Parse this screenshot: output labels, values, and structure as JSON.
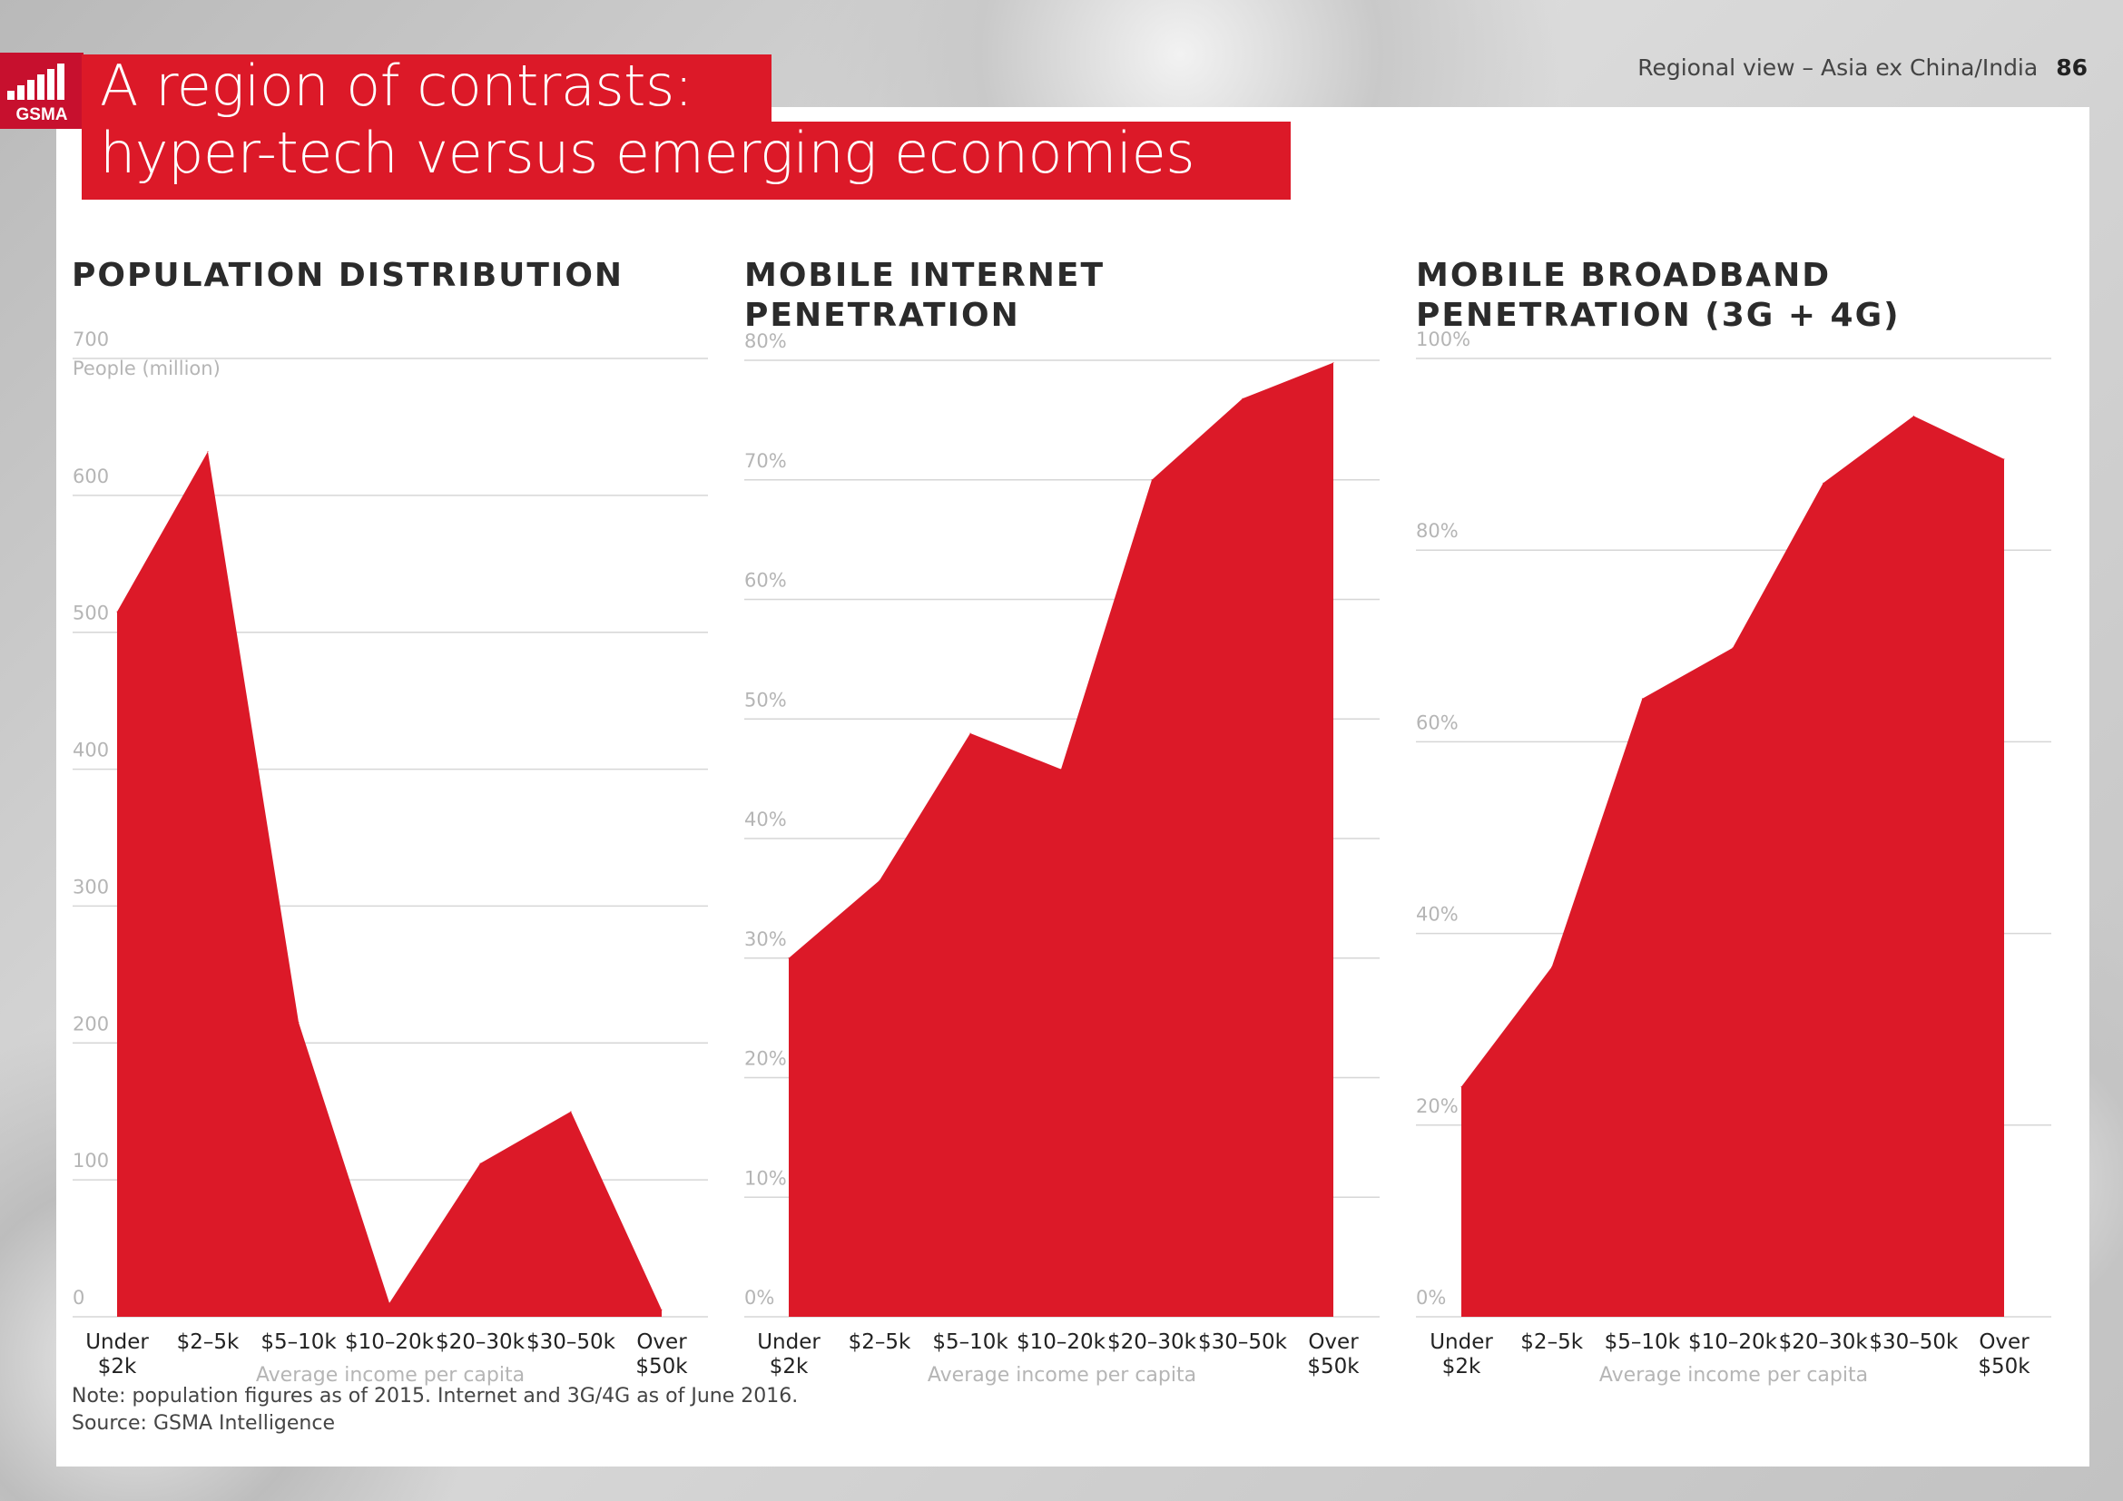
{
  "header": {
    "brand": "GSMA",
    "title_line1": "A region of contrasts:",
    "title_line2": "hyper-tech versus emerging economies",
    "section": "Regional view – Asia ex China/India",
    "page_number": "86"
  },
  "colors": {
    "accent": "#dc1928",
    "grid": "#d6d6d6",
    "tick": "#b5b5b5",
    "text": "#333333"
  },
  "footer": {
    "note": "Note: population figures as of 2015. Internet and 3G/4G as of June 2016.",
    "source": "Source: GSMA Intelligence"
  },
  "chart_data": [
    {
      "type": "area",
      "title": "POPULATION DISTRIBUTION",
      "ylabel": "People (million)",
      "xlabel": "Average income per capita",
      "categories": [
        "Under $2k",
        "$2-5k",
        "$5-10k",
        "$10-20k",
        "$20-30k",
        "$30-50k",
        "Over $50k"
      ],
      "category_labels": [
        [
          "Under",
          "$2k"
        ],
        [
          "$2–5k"
        ],
        [
          "$5–10k"
        ],
        [
          "$10–20k"
        ],
        [
          "$20–30k"
        ],
        [
          "$30–50k"
        ],
        [
          "Over",
          "$50k"
        ]
      ],
      "values": [
        515,
        632,
        215,
        10,
        112,
        150,
        5
      ],
      "ylim": [
        0,
        700
      ],
      "yticks": [
        0,
        100,
        200,
        300,
        400,
        500,
        600,
        700
      ],
      "ytick_labels": [
        "0",
        "100",
        "200",
        "300",
        "400",
        "500",
        "600",
        "700"
      ],
      "grid": true
    },
    {
      "type": "area",
      "title": "MOBILE INTERNET PENETRATION",
      "title_lines": [
        "MOBILE INTERNET",
        "PENETRATION"
      ],
      "xlabel": "Average income per capita",
      "categories": [
        "Under $2k",
        "$2-5k",
        "$5-10k",
        "$10-20k",
        "$20-30k",
        "$30-50k",
        "Over $50k"
      ],
      "category_labels": [
        [
          "Under",
          "$2k"
        ],
        [
          "$2–5k"
        ],
        [
          "$5–10k"
        ],
        [
          "$10–20k"
        ],
        [
          "$20–30k"
        ],
        [
          "$30–50k"
        ],
        [
          "Over",
          "$50k"
        ]
      ],
      "values": [
        30,
        36.5,
        48.8,
        45.8,
        70,
        76.8,
        79.8
      ],
      "ylim": [
        0,
        80
      ],
      "yticks": [
        0,
        10,
        20,
        30,
        40,
        50,
        60,
        70,
        80
      ],
      "ytick_labels": [
        "0%",
        "10%",
        "20%",
        "30%",
        "40%",
        "50%",
        "60%",
        "70%",
        "80%"
      ],
      "grid": true
    },
    {
      "type": "area",
      "title": "MOBILE BROADBAND PENETRATION (3G + 4G)",
      "title_lines": [
        "MOBILE BROADBAND",
        "PENETRATION (3G + 4G)"
      ],
      "xlabel": "Average income per capita",
      "categories": [
        "Under $2k",
        "$2-5k",
        "$5-10k",
        "$10-20k",
        "$20-30k",
        "$30-50k",
        "Over $50k"
      ],
      "category_labels": [
        [
          "Under",
          "$2k"
        ],
        [
          "$2–5k"
        ],
        [
          "$5–10k"
        ],
        [
          "$10–20k"
        ],
        [
          "$20–30k"
        ],
        [
          "$30–50k"
        ],
        [
          "Over",
          "$50k"
        ]
      ],
      "values": [
        24,
        36.5,
        64.5,
        69.8,
        87,
        94,
        89.5
      ],
      "ylim": [
        0,
        100
      ],
      "yticks": [
        0,
        20,
        40,
        60,
        80,
        100
      ],
      "ytick_labels": [
        "0%",
        "20%",
        "40%",
        "60%",
        "80%",
        "100%"
      ],
      "grid": true
    }
  ]
}
